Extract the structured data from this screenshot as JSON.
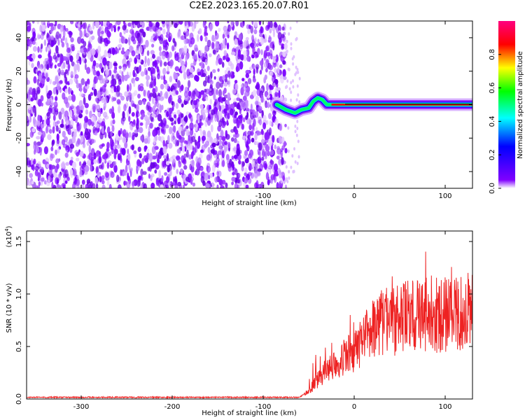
{
  "title": "C2E2.2023.165.20.07.R01",
  "chart_data": [
    {
      "type": "heatmap",
      "xlabel": "Height of straight line (km)",
      "ylabel": "Frequency (Hz)",
      "xlim": [
        -360,
        130
      ],
      "ylim": [
        -50,
        50
      ],
      "xticks": [
        -300,
        -200,
        -100,
        0,
        100
      ],
      "yticks": [
        -40,
        -20,
        0,
        20,
        40
      ],
      "colorbar": {
        "label": "Normalized spectral amplitude",
        "range": [
          0.0,
          1.0
        ],
        "ticks": [
          "0.0",
          "0.2",
          "0.4",
          "0.6",
          "0.8"
        ],
        "tick_values": [
          0.0,
          0.2,
          0.4,
          0.6,
          0.8
        ],
        "colormap": [
          "#ffffff",
          "#8000ff",
          "#0000ff",
          "#00ffff",
          "#00ff00",
          "#ffff00",
          "#ff0000",
          "#ff0080"
        ]
      },
      "noise_region_x": [
        -360,
        -75
      ],
      "signal_line": {
        "x": [
          -85,
          -75,
          -65,
          -58,
          -50,
          -45,
          -40,
          -35,
          -30,
          -20,
          0,
          20,
          40,
          60,
          80,
          100,
          130
        ],
        "y": [
          0,
          -3,
          -5,
          -3,
          -2,
          2,
          4,
          3,
          0,
          0,
          0,
          0,
          0,
          0,
          0,
          0,
          0
        ]
      }
    },
    {
      "type": "line",
      "xlabel": "Height of straight line (km)",
      "ylabel": "SNR (10 * v/v)",
      "y_multiplier": "(x10",
      "y_multiplier_exp": "4",
      "xlim": [
        -360,
        130
      ],
      "ylim": [
        0,
        1.6
      ],
      "xticks": [
        -300,
        -200,
        -100,
        0,
        100
      ],
      "yticks": [
        "0.0",
        "0.5",
        "1.0",
        "1.5"
      ],
      "ytick_values": [
        0.0,
        0.5,
        1.0,
        1.5
      ],
      "color": "#ee2222",
      "series": [
        {
          "x": [
            -360,
            -300,
            -200,
            -100,
            -60,
            -50,
            -40,
            -30,
            -20,
            -10,
            0,
            10,
            20,
            30,
            40,
            50,
            60,
            70,
            80,
            85,
            90,
            95,
            100,
            110,
            120,
            130
          ],
          "values": [
            0.01,
            0.01,
            0.01,
            0.01,
            0.01,
            0.08,
            0.18,
            0.28,
            0.35,
            0.4,
            0.45,
            0.55,
            0.65,
            0.75,
            0.75,
            0.75,
            0.8,
            0.8,
            0.8,
            0.9,
            0.8,
            0.78,
            0.8,
            0.8,
            0.82,
            0.85
          ]
        }
      ]
    }
  ]
}
